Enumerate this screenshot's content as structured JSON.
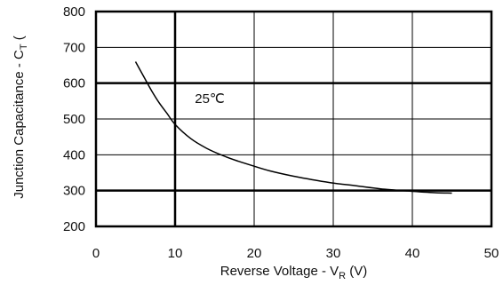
{
  "chart_data": {
    "type": "line",
    "xlabel": {
      "main": "Reverse Voltage - V",
      "sub": "R",
      "unit": " (V)"
    },
    "ylabel": {
      "main": "Junction Capacitance - C",
      "sub": "T",
      "unit": " ("
    },
    "xlim": [
      0,
      50
    ],
    "ylim": [
      200,
      800
    ],
    "x_ticks": [
      "0",
      "10",
      "20",
      "30",
      "40",
      "50"
    ],
    "y_ticks": [
      "200",
      "300",
      "400",
      "500",
      "600",
      "700",
      "800"
    ],
    "grid": true,
    "major_gridlines": {
      "x": [
        10
      ],
      "y": [
        300,
        600
      ]
    },
    "annotation": {
      "text": "25℃",
      "x": 12.5,
      "y": 545
    },
    "series": [
      {
        "x": [
          5,
          6,
          7,
          8,
          9,
          10,
          12,
          14,
          16,
          18,
          20,
          22,
          25,
          28,
          30,
          33,
          36,
          40,
          43,
          45
        ],
        "values": [
          660,
          620,
          580,
          545,
          515,
          485,
          445,
          418,
          398,
          382,
          368,
          355,
          340,
          328,
          321,
          313,
          305,
          298,
          294,
          293
        ]
      }
    ]
  }
}
